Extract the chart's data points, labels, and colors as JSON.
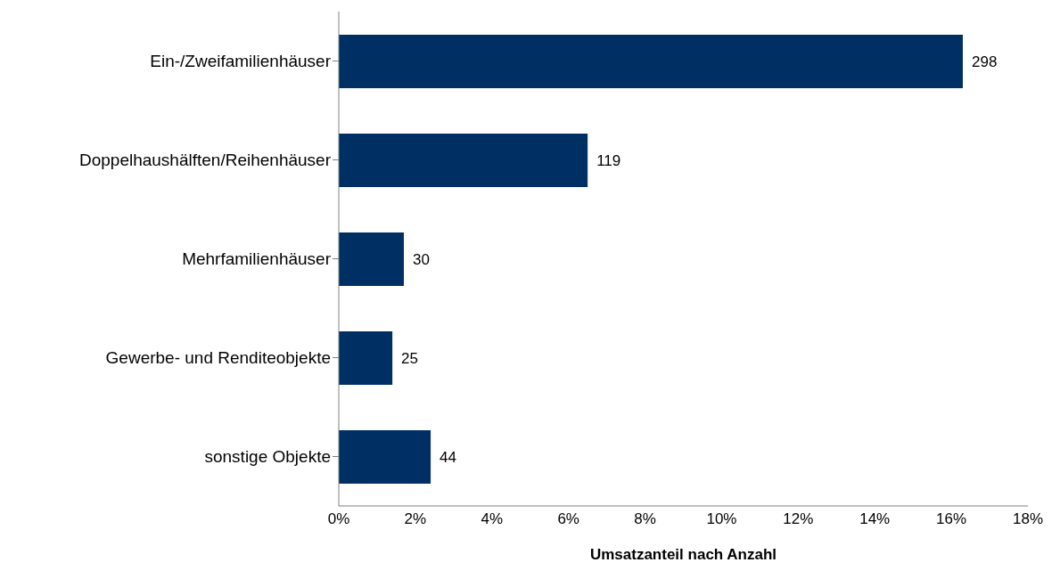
{
  "chart_data": {
    "type": "bar",
    "orientation": "horizontal",
    "xlabel": "Umsatzanteil nach Anzahl",
    "categories": [
      "Ein-/Zweifamilienhäuser",
      "Doppelhaushälften/Reihenhäuser",
      "Mehrfamilienhäuser",
      "Gewerbe- und Renditeobjekte",
      "sonstige Objekte"
    ],
    "values": [
      16.3,
      6.5,
      1.7,
      1.4,
      2.4
    ],
    "annotations": [
      {
        "text": "298",
        "x": 16.3,
        "y": "Ein-/Zweifamilienhäuser"
      },
      {
        "text": "119",
        "x": 6.5,
        "y": "Doppelhaushälften/Reihenhäuser"
      },
      {
        "text": "30",
        "x": 1.7,
        "y": "Mehrfamilienhäuser"
      },
      {
        "text": "25",
        "x": 1.4,
        "y": "Gewerbe- und Renditeobjekte"
      },
      {
        "text": "44",
        "x": 2.4,
        "y": "sonstige Objekte"
      }
    ],
    "color": "#003063",
    "xlim": [
      0,
      18
    ],
    "xticks": [
      {
        "value": 0,
        "label": "0%"
      },
      {
        "value": 2,
        "label": "2%"
      },
      {
        "value": 4,
        "label": "4%"
      },
      {
        "value": 6,
        "label": "6%"
      },
      {
        "value": 8,
        "label": "8%"
      },
      {
        "value": 10,
        "label": "10%"
      },
      {
        "value": 12,
        "label": "12%"
      },
      {
        "value": 14,
        "label": "14%"
      },
      {
        "value": 16,
        "label": "16%"
      },
      {
        "value": 18,
        "label": "18%"
      }
    ],
    "grid": false,
    "legend": false
  }
}
